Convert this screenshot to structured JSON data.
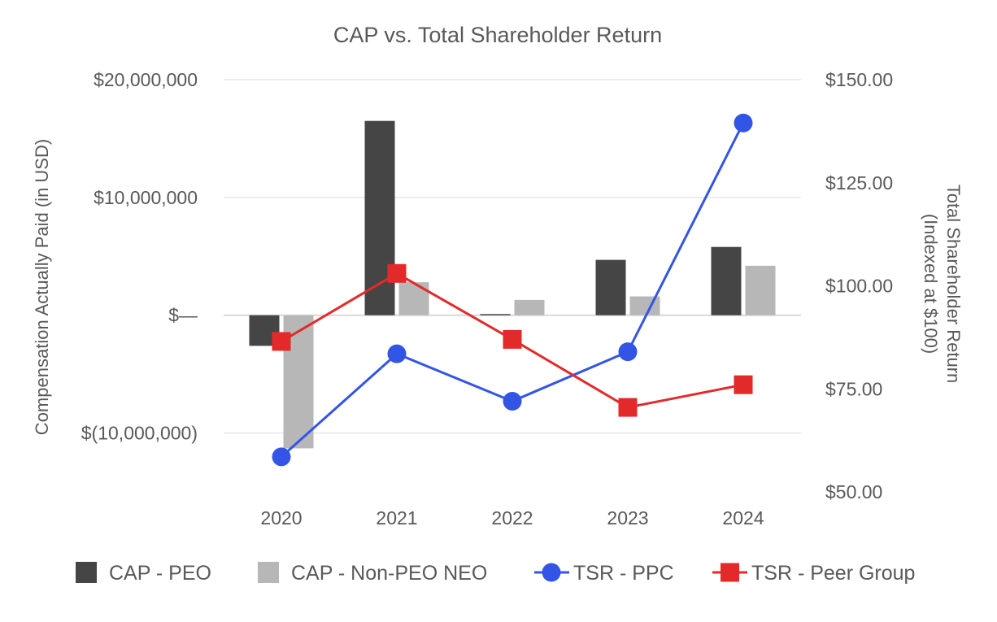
{
  "chart_data": {
    "type": "bar",
    "title": "CAP vs. Total Shareholder Return",
    "categories": [
      "2020",
      "2021",
      "2022",
      "2023",
      "2024"
    ],
    "y_left": {
      "label": "Compensation Actually Paid (in USD)",
      "ticks": [
        20000000,
        10000000,
        0,
        -10000000
      ],
      "tick_labels": [
        "$20,000,000",
        "$10,000,000",
        "$—",
        "$(10,000,000)"
      ],
      "range": [
        -15000000,
        20000000
      ]
    },
    "y_right": {
      "label_line1": "Total Shareholder Return",
      "label_line2": "(Indexed at $100)",
      "ticks": [
        150,
        125,
        100,
        75,
        50
      ],
      "tick_labels": [
        "$150.00",
        "$125.00",
        "$100.00",
        "$75.00",
        "$50.00"
      ],
      "range": [
        50,
        150
      ]
    },
    "bar_series": [
      {
        "name": "CAP - PEO",
        "color": "#454545",
        "values": [
          -2600000,
          16500000,
          100000,
          4700000,
          5800000
        ]
      },
      {
        "name": "CAP - Non-PEO NEO",
        "color": "#b7b7b7",
        "values": [
          -11300000,
          2800000,
          1300000,
          1600000,
          4200000
        ]
      }
    ],
    "line_series": [
      {
        "name": "TSR - PPC",
        "color": "#3355e6",
        "marker": "circle",
        "values": [
          58.5,
          83.5,
          72,
          84,
          139.5
        ]
      },
      {
        "name": "TSR - Peer Group",
        "color": "#e32a2a",
        "marker": "square",
        "values": [
          86.5,
          103,
          87,
          70.5,
          76
        ]
      }
    ],
    "legend_position": "bottom",
    "grid": true
  }
}
